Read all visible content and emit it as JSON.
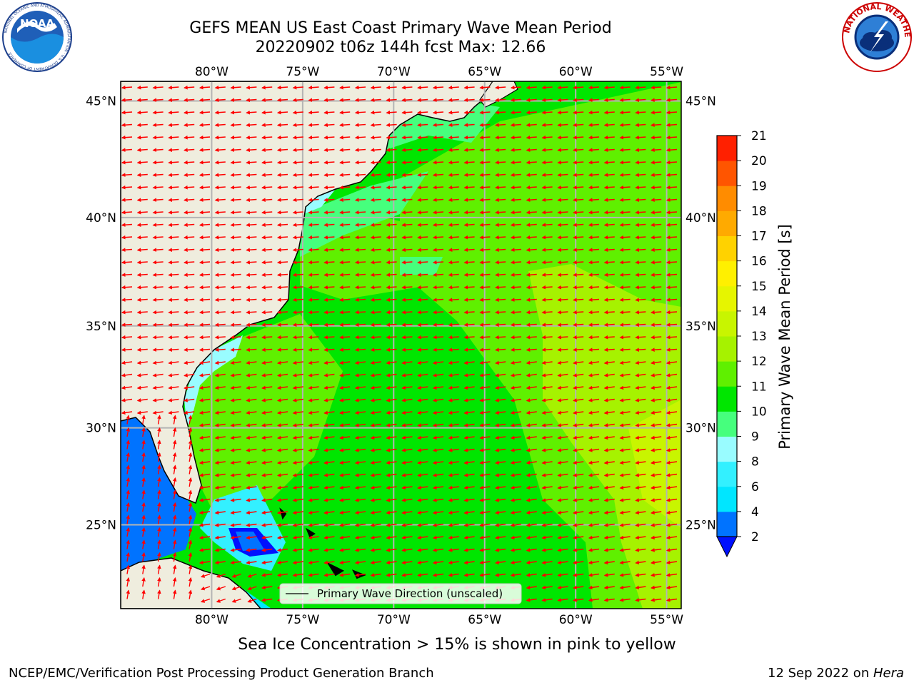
{
  "header": {
    "title_line1": "GEFS MEAN US East Coast Primary Wave Mean Period",
    "title_line2": "20220902 t06z 144h fcst   Max: 12.66"
  },
  "logos": {
    "noaa": "NOAA",
    "noaa_ring": "NATIONAL OCEANIC AND ATMOSPHERIC ADMINISTRATION · U.S. DEPARTMENT OF COMMERCE",
    "nws_ring": "NATIONAL WEATHER SERVICE"
  },
  "map": {
    "lon_labels": [
      "80°W",
      "75°W",
      "70°W",
      "65°W",
      "60°W",
      "55°W"
    ],
    "lat_labels": [
      "45°N",
      "40°N",
      "35°N",
      "30°N",
      "25°N"
    ],
    "lon_values": [
      -80,
      -75,
      -70,
      -65,
      -60,
      -55
    ],
    "lat_values": [
      45,
      40,
      35,
      30,
      25
    ],
    "extent": {
      "lon_min": -85,
      "lon_max": -54.2,
      "lat_min": 20.5,
      "lat_max": 45.8
    },
    "legend_label": "Primary Wave Direction (unscaled)",
    "wave_direction_colour": "#ff0000",
    "land_colour": "#efedde",
    "grid_colour": "#b4b4b4"
  },
  "colorbar": {
    "label": "Primary Wave Mean Period [s]",
    "ticks": [
      "2",
      "4",
      "6",
      "8",
      "9",
      "10",
      "11",
      "12",
      "13",
      "14",
      "15",
      "16",
      "17",
      "18",
      "19",
      "20",
      "21"
    ],
    "colors": [
      "#0073ff",
      "#00e6ff",
      "#33f0ff",
      "#99fcff",
      "#46ff7d",
      "#00e600",
      "#5ff000",
      "#a6f200",
      "#c8f500",
      "#e6f500",
      "#fff000",
      "#ffd200",
      "#ffaa00",
      "#ff8c00",
      "#ff5500",
      "#ff2000",
      "#ff0000"
    ],
    "extend_colour": "#0010ff"
  },
  "footer": {
    "subtitle": "Sea Ice Concentration > 15% is shown in pink to yellow",
    "credit": "NCEP/EMC/Verification Post Processing Product Generation Branch",
    "date": "12 Sep 2022 on ",
    "machine": "Hera"
  }
}
